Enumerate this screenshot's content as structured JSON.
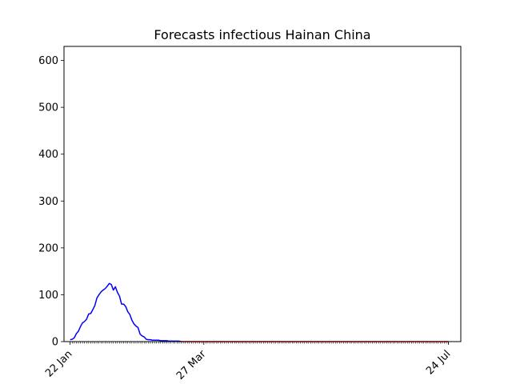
{
  "chart_data": {
    "type": "line",
    "title": "Forecasts infectious Hainan China",
    "xlabel": "",
    "ylabel": "",
    "ylim": [
      0,
      630
    ],
    "yticks": [
      0,
      100,
      200,
      300,
      400,
      500,
      600
    ],
    "xlim": [
      "2020-01-19",
      "2020-07-30"
    ],
    "xticks": [
      {
        "date": "2020-01-22",
        "label": "22 Jan"
      },
      {
        "date": "2020-03-27",
        "label": "27 Mar"
      },
      {
        "date": "2020-07-24",
        "label": "24 Jul"
      }
    ],
    "minor_ticks": {
      "start": "2020-01-22",
      "end": "2020-07-24",
      "step_days": 1
    },
    "grid": false,
    "series": [
      {
        "color": "#0000ff",
        "points": [
          [
            "2020-01-22",
            4
          ],
          [
            "2020-01-23",
            5
          ],
          [
            "2020-01-24",
            8
          ],
          [
            "2020-01-25",
            17
          ],
          [
            "2020-01-26",
            22
          ],
          [
            "2020-01-27",
            32
          ],
          [
            "2020-01-28",
            40
          ],
          [
            "2020-01-29",
            43
          ],
          [
            "2020-01-30",
            48
          ],
          [
            "2020-01-31",
            59
          ],
          [
            "2020-02-01",
            60
          ],
          [
            "2020-02-02",
            68
          ],
          [
            "2020-02-03",
            77
          ],
          [
            "2020-02-04",
            93
          ],
          [
            "2020-02-05",
            100
          ],
          [
            "2020-02-06",
            106
          ],
          [
            "2020-02-07",
            110
          ],
          [
            "2020-02-08",
            113
          ],
          [
            "2020-02-09",
            118
          ],
          [
            "2020-02-10",
            124
          ],
          [
            "2020-02-11",
            122
          ],
          [
            "2020-02-12",
            110
          ],
          [
            "2020-02-13",
            117
          ],
          [
            "2020-02-14",
            105
          ],
          [
            "2020-02-15",
            97
          ],
          [
            "2020-02-16",
            80
          ],
          [
            "2020-02-17",
            80
          ],
          [
            "2020-02-18",
            75
          ],
          [
            "2020-02-19",
            64
          ],
          [
            "2020-02-20",
            58
          ],
          [
            "2020-02-21",
            46
          ],
          [
            "2020-02-22",
            38
          ],
          [
            "2020-02-23",
            33
          ],
          [
            "2020-02-24",
            30
          ],
          [
            "2020-02-25",
            16
          ],
          [
            "2020-02-26",
            12
          ],
          [
            "2020-02-27",
            10
          ],
          [
            "2020-02-28",
            5
          ],
          [
            "2020-02-29",
            4
          ],
          [
            "2020-03-01",
            4
          ],
          [
            "2020-03-02",
            3
          ],
          [
            "2020-03-03",
            3
          ],
          [
            "2020-03-04",
            3
          ],
          [
            "2020-03-05",
            3
          ],
          [
            "2020-03-06",
            2
          ],
          [
            "2020-03-07",
            2
          ],
          [
            "2020-03-08",
            2
          ],
          [
            "2020-03-09",
            2
          ],
          [
            "2020-03-10",
            1
          ],
          [
            "2020-03-11",
            1
          ],
          [
            "2020-03-12",
            1
          ],
          [
            "2020-03-13",
            1
          ],
          [
            "2020-03-14",
            1
          ],
          [
            "2020-03-15",
            1
          ],
          [
            "2020-03-16",
            0
          ]
        ]
      },
      {
        "color": "#ff0000",
        "points": [
          [
            "2020-03-16",
            0
          ],
          [
            "2020-04-01",
            0
          ],
          [
            "2020-05-01",
            0
          ],
          [
            "2020-06-01",
            0
          ],
          [
            "2020-07-01",
            0
          ],
          [
            "2020-07-24",
            0
          ]
        ]
      }
    ]
  }
}
